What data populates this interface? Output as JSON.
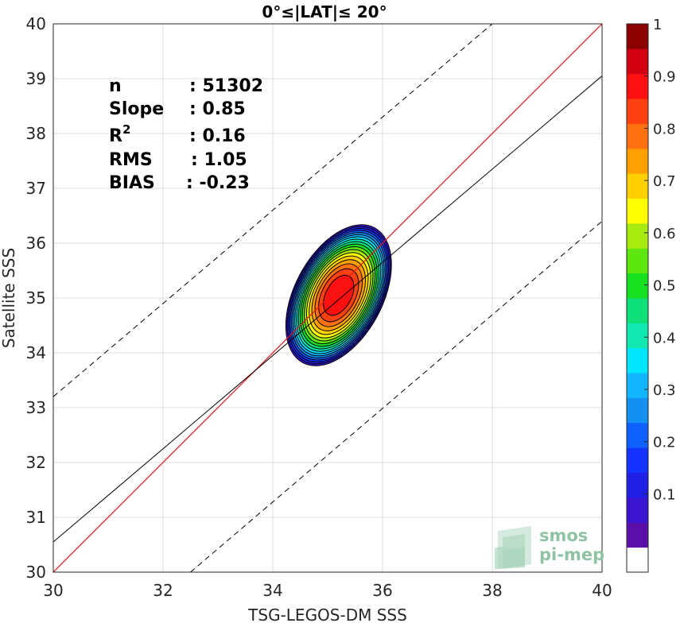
{
  "chart_data": {
    "type": "contour",
    "title": "0°≤|LAT|≤ 20°",
    "xlabel": "TSG-LEGOS-DM SSS",
    "ylabel": "Satellite SSS",
    "xlim": [
      30,
      40
    ],
    "ylim": [
      30,
      40
    ],
    "xticks": [
      30,
      32,
      34,
      36,
      38,
      40
    ],
    "yticks": [
      30,
      31,
      32,
      33,
      34,
      35,
      36,
      37,
      38,
      39,
      40
    ],
    "grid": true,
    "stats": [
      {
        "label": "n",
        "value": ": 51302"
      },
      {
        "label": "Slope",
        "value": ": 0.85"
      },
      {
        "label": "R",
        "sup": "2",
        "value": ": 0.16"
      },
      {
        "label": "RMS",
        "value": ": 1.05"
      },
      {
        "label": "BIAS",
        "value": ": -0.23"
      }
    ],
    "lines": {
      "identity": {
        "slope": 1,
        "intercept": 0,
        "color": "#e41a1c"
      },
      "fit": {
        "slope": 0.85,
        "points": [
          [
            30,
            30.55
          ],
          [
            40,
            39.05
          ]
        ],
        "color": "#000000"
      },
      "upper_bound": {
        "dash": true,
        "points": [
          [
            30,
            33.2
          ],
          [
            40,
            41.7
          ]
        ]
      },
      "lower_bound": {
        "dash": true,
        "points": [
          [
            32.5,
            30
          ],
          [
            40,
            36.4
          ]
        ]
      }
    },
    "density_peak": {
      "x": 35.2,
      "y": 35.05
    },
    "contour_levels": [
      0.05,
      0.1,
      0.15,
      0.2,
      0.25,
      0.3,
      0.35,
      0.4,
      0.45,
      0.5,
      0.55,
      0.6,
      0.65,
      0.7,
      0.75,
      0.8,
      0.85,
      0.9,
      0.95
    ],
    "colorbar": {
      "ticks": [
        0.1,
        0.2,
        0.3,
        0.4,
        0.5,
        0.6,
        0.7,
        0.8,
        0.9,
        1
      ],
      "tick_labels": [
        "0.1",
        "0.2",
        "0.3",
        "0.4",
        "0.5",
        "0.6",
        "0.7",
        "0.8",
        "0.9",
        "1"
      ],
      "colors": [
        "#ffffff",
        "#5a0fa8",
        "#3a14d0",
        "#1f1fe6",
        "#1433ff",
        "#1060ff",
        "#1490f0",
        "#12b5ff",
        "#00e6ff",
        "#10e8b0",
        "#0fe07a",
        "#16e020",
        "#5ee60f",
        "#a8ea10",
        "#ffff00",
        "#ffd000",
        "#ffa000",
        "#ff7010",
        "#ff4010",
        "#ff1010",
        "#d00010",
        "#8c0000"
      ]
    }
  },
  "logo": {
    "line1": "smos",
    "line2": "pi-mep"
  }
}
